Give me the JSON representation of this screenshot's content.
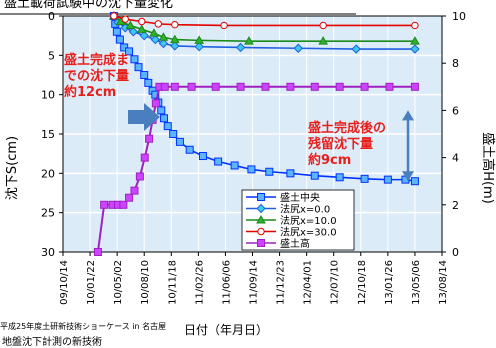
{
  "page": {
    "title": "盛土載荷試験中の沈下量変化",
    "footer_event": "平成25年度土研新技術ショーケース in 名古屋",
    "footer_extra": "地盤沈下計測の新技術"
  },
  "chart_data": {
    "type": "line",
    "xlabel": "日付（年月日）",
    "ylabel_left": "沈下S(cm)",
    "ylabel_right": "盛土高H(m)",
    "x_tick_labels": [
      "09/10/14",
      "10/01/22",
      "10/05/02",
      "10/08/10",
      "10/11/18",
      "11/02/26",
      "11/06/06",
      "11/09/14",
      "11/12/23",
      "12/04/01",
      "12/07/10",
      "12/10/18",
      "13/01/26",
      "13/05/06",
      "13/08/14"
    ],
    "x_range": [
      "2009-10-14",
      "2013-08-14"
    ],
    "y_left_range": [
      30,
      0
    ],
    "y_left_ticks": [
      0,
      5,
      10,
      15,
      20,
      25,
      30
    ],
    "y_right_range": [
      0,
      10
    ],
    "y_right_ticks": [
      0,
      2,
      4,
      6,
      8,
      10
    ],
    "grid": true,
    "legend_position": "bottom-right",
    "colors": {
      "plot_bg": "#dcebf8",
      "grid": "#ffffff",
      "annotation_red": "#e8201c",
      "arrow": "#4a7fbf"
    },
    "series": [
      {
        "name": "盛土中央",
        "axis": "left",
        "color": "#0033ff",
        "marker": "square",
        "marker_fill": "#5ab4ff",
        "points": [
          [
            "2010-04-20",
            0
          ],
          [
            "2010-04-25",
            1.0
          ],
          [
            "2010-05-01",
            2.0
          ],
          [
            "2010-05-12",
            3.0
          ],
          [
            "2010-05-28",
            4.0
          ],
          [
            "2010-06-15",
            4.5
          ],
          [
            "2010-07-05",
            5.5
          ],
          [
            "2010-07-20",
            6.5
          ],
          [
            "2010-08-10",
            7.5
          ],
          [
            "2010-08-25",
            8.5
          ],
          [
            "2010-09-10",
            9.5
          ],
          [
            "2010-09-20",
            10.0
          ],
          [
            "2010-10-01",
            11.0
          ],
          [
            "2010-10-12",
            12.0
          ],
          [
            "2010-10-22",
            13.0
          ],
          [
            "2010-11-05",
            14.0
          ],
          [
            "2010-11-25",
            15.0
          ],
          [
            "2010-12-20",
            16.0
          ],
          [
            "2011-01-25",
            17.0
          ],
          [
            "2011-03-15",
            17.8
          ],
          [
            "2011-05-10",
            18.5
          ],
          [
            "2011-07-10",
            19.0
          ],
          [
            "2011-09-10",
            19.5
          ],
          [
            "2011-11-15",
            19.8
          ],
          [
            "2012-02-01",
            20.0
          ],
          [
            "2012-05-01",
            20.3
          ],
          [
            "2012-08-01",
            20.5
          ],
          [
            "2012-11-01",
            20.7
          ],
          [
            "2013-01-26",
            20.8
          ],
          [
            "2013-04-01",
            20.8
          ],
          [
            "2013-05-06",
            21.0
          ]
        ]
      },
      {
        "name": "法尻x=0.0",
        "axis": "left",
        "color": "#2060e0",
        "marker": "diamond",
        "marker_fill": "#3cc8e8",
        "points": [
          [
            "2010-04-20",
            0
          ],
          [
            "2010-05-05",
            0.8
          ],
          [
            "2010-06-01",
            1.5
          ],
          [
            "2010-07-01",
            2.0
          ],
          [
            "2010-08-10",
            2.5
          ],
          [
            "2010-09-20",
            3.0
          ],
          [
            "2010-10-20",
            3.5
          ],
          [
            "2010-12-01",
            3.8
          ],
          [
            "2011-03-01",
            3.9
          ],
          [
            "2011-08-01",
            4.0
          ],
          [
            "2012-03-01",
            4.1
          ],
          [
            "2012-10-01",
            4.2
          ],
          [
            "2013-05-06",
            4.2
          ]
        ]
      },
      {
        "name": "法尻x=10.0",
        "axis": "left",
        "color": "#1a8a1a",
        "marker": "triangle",
        "marker_fill": "#2fb12f",
        "points": [
          [
            "2010-04-20",
            0
          ],
          [
            "2010-05-15",
            0.7
          ],
          [
            "2010-06-20",
            1.2
          ],
          [
            "2010-08-01",
            1.7
          ],
          [
            "2010-09-15",
            2.2
          ],
          [
            "2010-10-20",
            2.7
          ],
          [
            "2010-12-01",
            3.0
          ],
          [
            "2011-03-01",
            3.1
          ],
          [
            "2011-09-01",
            3.2
          ],
          [
            "2012-06-01",
            3.2
          ],
          [
            "2013-05-06",
            3.2
          ]
        ]
      },
      {
        "name": "法尻x=30.0",
        "axis": "left",
        "color": "#e60000",
        "marker": "circle",
        "marker_fill": "#ffffff",
        "points": [
          [
            "2010-04-20",
            0
          ],
          [
            "2010-06-01",
            0.4
          ],
          [
            "2010-08-01",
            0.7
          ],
          [
            "2010-10-01",
            1.0
          ],
          [
            "2010-12-01",
            1.1
          ],
          [
            "2011-06-01",
            1.2
          ],
          [
            "2012-06-01",
            1.2
          ],
          [
            "2013-05-06",
            1.2
          ]
        ]
      },
      {
        "name": "盛土高",
        "axis": "right",
        "color": "#a020c0",
        "marker": "square",
        "marker_fill": "#cc44ff",
        "points": [
          [
            "2010-02-20",
            0
          ],
          [
            "2010-03-15",
            2.0
          ],
          [
            "2010-04-15",
            2.0
          ],
          [
            "2010-05-05",
            2.0
          ],
          [
            "2010-05-25",
            2.0
          ],
          [
            "2010-06-15",
            2.3
          ],
          [
            "2010-07-05",
            2.6
          ],
          [
            "2010-07-25",
            3.2
          ],
          [
            "2010-08-12",
            4.0
          ],
          [
            "2010-08-28",
            4.8
          ],
          [
            "2010-09-10",
            5.6
          ],
          [
            "2010-09-22",
            6.3
          ],
          [
            "2010-10-05",
            7.0
          ],
          [
            "2010-10-25",
            7.0
          ],
          [
            "2010-12-01",
            7.0
          ],
          [
            "2011-02-01",
            7.0
          ],
          [
            "2011-05-01",
            7.0
          ],
          [
            "2011-08-01",
            7.0
          ],
          [
            "2011-11-01",
            7.0
          ],
          [
            "2012-02-01",
            7.0
          ],
          [
            "2012-05-01",
            7.0
          ],
          [
            "2012-08-01",
            7.0
          ],
          [
            "2012-11-01",
            7.0
          ],
          [
            "2013-02-01",
            7.0
          ],
          [
            "2013-05-06",
            7.0
          ]
        ]
      }
    ],
    "annotations": [
      {
        "id": "ann1",
        "lines": [
          "盛土完成ま",
          "での沈下量",
          "約12cm"
        ]
      },
      {
        "id": "ann2",
        "lines": [
          "盛土完成後の",
          "残留沈下量",
          "約9cm"
        ]
      }
    ]
  }
}
